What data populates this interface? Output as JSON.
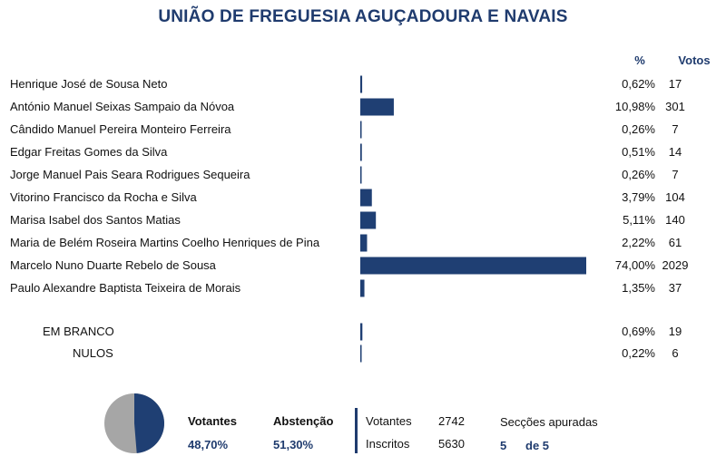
{
  "title": "UNIÃO DE FREGUESIA AGUÇADOURA E NAVAIS",
  "headers": {
    "pct": "%",
    "votes": "Votos"
  },
  "colors": {
    "bar": "#1f3f73",
    "title": "#1f3b6e",
    "pie_dark": "#1f3f73",
    "pie_light": "#a6a6a6"
  },
  "chart_data": {
    "type": "bar",
    "orientation": "horizontal",
    "xlim": [
      0,
      74
    ],
    "categories": [
      "Henrique José de Sousa Neto",
      "António Manuel Seixas Sampaio da Nóvoa",
      "Cândido Manuel Pereira Monteiro Ferreira",
      "Edgar Freitas Gomes da Silva",
      "Jorge Manuel Pais Seara Rodrigues Sequeira",
      "Vitorino Francisco da Rocha e Silva",
      "Marisa Isabel dos Santos Matias",
      "Maria de Belém Roseira Martins Coelho Henriques de Pina",
      "Marcelo Nuno Duarte Rebelo de Sousa",
      "Paulo Alexandre Baptista Teixeira de Morais"
    ],
    "values": [
      0.62,
      10.98,
      0.26,
      0.51,
      0.26,
      3.79,
      5.11,
      2.22,
      74.0,
      1.35
    ],
    "pct_labels": [
      "0,62%",
      "10,98%",
      "0,26%",
      "0,51%",
      "0,26%",
      "3,79%",
      "5,11%",
      "2,22%",
      "74,00%",
      "1,35%"
    ],
    "votes": [
      "17",
      "301",
      "7",
      "14",
      "7",
      "104",
      "140",
      "61",
      "2029",
      "37"
    ],
    "extra": [
      {
        "label": "EM BRANCO",
        "value": 0.69,
        "pct_label": "0,69%",
        "votes": "19"
      },
      {
        "label": "NULOS",
        "value": 0.22,
        "pct_label": "0,22%",
        "votes": "6"
      }
    ],
    "pie": {
      "type": "pie",
      "values": [
        48.7,
        51.3
      ]
    }
  },
  "footer": {
    "votantes_label": "Votantes",
    "votantes_pct": "48,70%",
    "abstencao_label": "Abstenção",
    "abstencao_pct": "51,30%",
    "votantes_count_label": "Votantes",
    "votantes_count": "2742",
    "inscritos_label": "Inscritos",
    "inscritos_count": "5630",
    "seccoes_label": "Secções apuradas",
    "seccoes_done": "5",
    "seccoes_total": "de 5"
  }
}
